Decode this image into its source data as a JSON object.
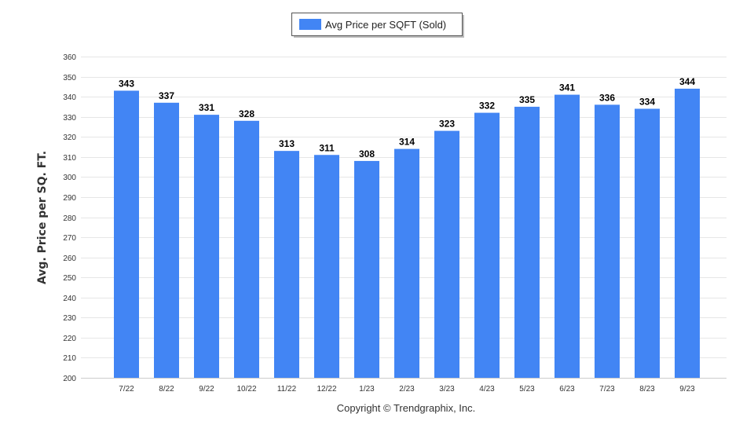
{
  "chart_data": {
    "type": "bar",
    "categories": [
      "7/22",
      "8/22",
      "9/22",
      "10/22",
      "11/22",
      "12/22",
      "1/23",
      "2/23",
      "3/23",
      "4/23",
      "5/23",
      "6/23",
      "7/23",
      "8/23",
      "9/23"
    ],
    "series": [
      {
        "name": "Avg Price per SQFT (Sold)",
        "values": [
          343,
          337,
          331,
          328,
          313,
          311,
          308,
          314,
          323,
          332,
          335,
          341,
          336,
          334,
          344
        ],
        "color": "#4285f4"
      }
    ],
    "ylabel": "Avg. Price per SQ. FT.",
    "xlabel": "",
    "ylim": [
      200,
      360
    ],
    "yticks": [
      200,
      210,
      220,
      230,
      240,
      250,
      260,
      270,
      280,
      290,
      300,
      310,
      320,
      330,
      340,
      350,
      360
    ],
    "grid": true,
    "legend_position": "top-center",
    "data_labels": true
  },
  "footer": {
    "copyright": "Copyright © Trendgraphix, Inc."
  }
}
